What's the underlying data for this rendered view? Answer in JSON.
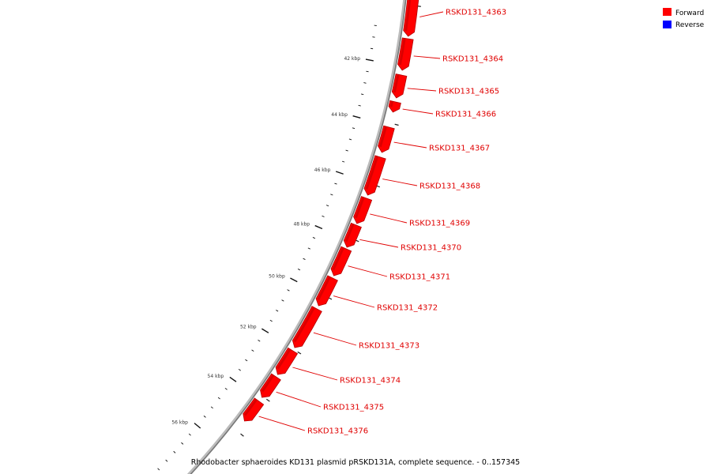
{
  "colors": {
    "forward": "#ff0000",
    "forward_dark": "#b30000",
    "reverse": "#0000ff",
    "label": "#e00000",
    "backbone": "#888888"
  },
  "legend": [
    {
      "label": "Forward",
      "color": "#ff0000"
    },
    {
      "label": "Reverse",
      "color": "#0000ff"
    }
  ],
  "caption": "Rhodobacter sphaeroides KD131 plasmid pRSKD131A, complete sequence. - 0..157345",
  "ruler": {
    "tick_labels": [
      "42 kbp",
      "44 kbp",
      "46 kbp",
      "48 kbp",
      "50 kbp",
      "52 kbp",
      "54 kbp",
      "56 kbp"
    ]
  },
  "genes": [
    {
      "name": "RSKD131_4363",
      "strand": "forward"
    },
    {
      "name": "RSKD131_4364",
      "strand": "forward"
    },
    {
      "name": "RSKD131_4365",
      "strand": "forward"
    },
    {
      "name": "RSKD131_4366",
      "strand": "forward"
    },
    {
      "name": "RSKD131_4367",
      "strand": "forward"
    },
    {
      "name": "RSKD131_4368",
      "strand": "forward"
    },
    {
      "name": "RSKD131_4369",
      "strand": "forward"
    },
    {
      "name": "RSKD131_4370",
      "strand": "forward"
    },
    {
      "name": "RSKD131_4371",
      "strand": "forward"
    },
    {
      "name": "RSKD131_4372",
      "strand": "forward"
    },
    {
      "name": "RSKD131_4373",
      "strand": "forward"
    },
    {
      "name": "RSKD131_4374",
      "strand": "forward"
    },
    {
      "name": "RSKD131_4375",
      "strand": "forward"
    },
    {
      "name": "RSKD131_4376",
      "strand": "forward"
    }
  ]
}
